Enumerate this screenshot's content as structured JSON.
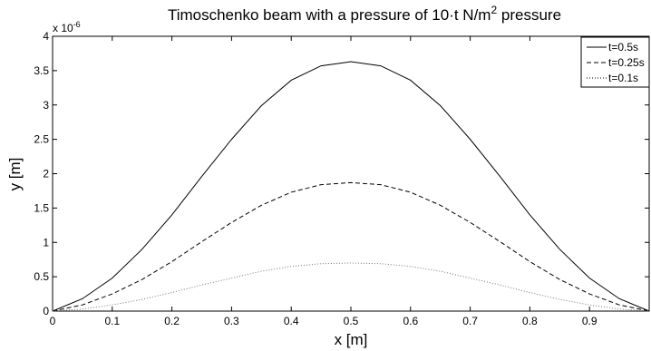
{
  "chart_data": {
    "type": "line",
    "title": {
      "base": "Timoschenko beam with a pressure of 10·t N/m",
      "superscript": "2",
      "tail": " pressure"
    },
    "xlabel": "x [m]",
    "ylabel": "y [m]",
    "y_multiplier": {
      "base": "x 10",
      "exponent": "-6"
    },
    "xlim": [
      0,
      1
    ],
    "ylim": [
      0,
      4
    ],
    "x_ticks": [
      "0",
      "0.1",
      "0.2",
      "0.3",
      "0.4",
      "0.5",
      "0.6",
      "0.7",
      "0.8",
      "0.9"
    ],
    "x_tick_values": [
      0,
      0.1,
      0.2,
      0.3,
      0.4,
      0.5,
      0.6,
      0.7,
      0.8,
      0.9
    ],
    "y_ticks": [
      "0",
      "0.5",
      "1",
      "1.5",
      "2",
      "2.5",
      "3",
      "3.5",
      "4"
    ],
    "y_tick_values": [
      0,
      0.5,
      1,
      1.5,
      2,
      2.5,
      3,
      3.5,
      4
    ],
    "grid": false,
    "legend_position": "top-right",
    "x": [
      0,
      0.05,
      0.1,
      0.15,
      0.2,
      0.25,
      0.3,
      0.35,
      0.4,
      0.45,
      0.5,
      0.55,
      0.6,
      0.65,
      0.7,
      0.75,
      0.8,
      0.85,
      0.9,
      0.95,
      1.0
    ],
    "series": [
      {
        "name": "t=0.5s",
        "style": "solid",
        "values": [
          0,
          0.18,
          0.48,
          0.9,
          1.4,
          1.96,
          2.5,
          2.99,
          3.36,
          3.57,
          3.63,
          3.57,
          3.36,
          2.99,
          2.5,
          1.96,
          1.4,
          0.9,
          0.48,
          0.18,
          0
        ]
      },
      {
        "name": "t=0.25s",
        "style": "dashed",
        "values": [
          0,
          0.09,
          0.25,
          0.46,
          0.72,
          1.01,
          1.29,
          1.54,
          1.73,
          1.84,
          1.87,
          1.84,
          1.73,
          1.54,
          1.29,
          1.01,
          0.72,
          0.46,
          0.25,
          0.09,
          0
        ]
      },
      {
        "name": "t=0.1s",
        "style": "dotted",
        "values": [
          0,
          0.03,
          0.09,
          0.17,
          0.27,
          0.38,
          0.48,
          0.58,
          0.65,
          0.69,
          0.7,
          0.69,
          0.65,
          0.58,
          0.48,
          0.38,
          0.27,
          0.17,
          0.09,
          0.03,
          0
        ]
      }
    ]
  }
}
